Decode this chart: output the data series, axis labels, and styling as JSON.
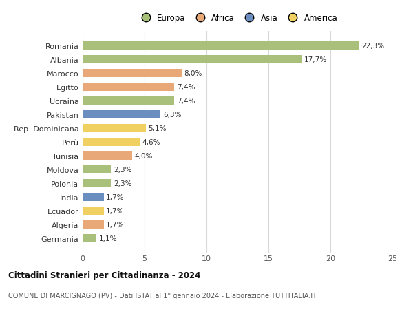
{
  "countries": [
    "Romania",
    "Albania",
    "Marocco",
    "Egitto",
    "Ucraina",
    "Pakistan",
    "Rep. Dominicana",
    "Perù",
    "Tunisia",
    "Moldova",
    "Polonia",
    "India",
    "Ecuador",
    "Algeria",
    "Germania"
  ],
  "values": [
    22.3,
    17.7,
    8.0,
    7.4,
    7.4,
    6.3,
    5.1,
    4.6,
    4.0,
    2.3,
    2.3,
    1.7,
    1.7,
    1.7,
    1.1
  ],
  "labels": [
    "22,3%",
    "17,7%",
    "8,0%",
    "7,4%",
    "7,4%",
    "6,3%",
    "5,1%",
    "4,6%",
    "4,0%",
    "2,3%",
    "2,3%",
    "1,7%",
    "1,7%",
    "1,7%",
    "1,1%"
  ],
  "colors": [
    "#a8c07a",
    "#a8c07a",
    "#e8a878",
    "#e8a878",
    "#a8c07a",
    "#6a8ec0",
    "#f0d060",
    "#f0d060",
    "#e8a878",
    "#a8c07a",
    "#a8c07a",
    "#6a8ec0",
    "#f0d060",
    "#e8a878",
    "#a8c07a"
  ],
  "legend_labels": [
    "Europa",
    "Africa",
    "Asia",
    "America"
  ],
  "legend_colors": [
    "#a8c07a",
    "#e8a878",
    "#6a8ec0",
    "#f0d060"
  ],
  "xlim": [
    0,
    25
  ],
  "xticks": [
    0,
    5,
    10,
    15,
    20,
    25
  ],
  "title": "Cittadini Stranieri per Cittadinanza - 2024",
  "subtitle": "COMUNE DI MARCIGNAGO (PV) - Dati ISTAT al 1° gennaio 2024 - Elaborazione TUTTITALIA.IT",
  "bg_color": "#ffffff",
  "grid_color": "#d8d8d8",
  "bar_height": 0.6
}
